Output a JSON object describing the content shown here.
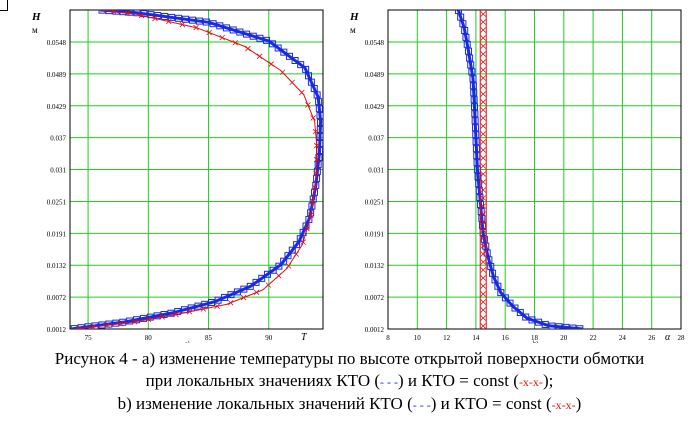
{
  "caption": {
    "line1": "Рисунок 4 - а) изменение температуры по высоте открытой поверхности обмотки",
    "line2a": "при локальных значениях КТО (",
    "line2b": "- - -",
    "line2c": ") и КТО = const (",
    "line2d": "-x-x-",
    "line2e": ");",
    "line3a": "b) изменение локальных значений КТО (",
    "line3b": "-  - -",
    "line3c": ") и КТО = const (",
    "line3d": "-x-x-",
    "line3e": ")"
  },
  "colors": {
    "grid": "#22cc22",
    "blue": "#1a2ae0",
    "red": "#e01010",
    "axis": "#000000"
  },
  "chart_data": [
    {
      "type": "line",
      "panel_label": "a)",
      "ylabel": "H",
      "ylabel_unit": "м",
      "xlabel": "T",
      "xlim": [
        73.5,
        94.5
      ],
      "ylim": [
        0.0012,
        0.0608
      ],
      "x_ticks": [
        75,
        80,
        85,
        90
      ],
      "y_ticks": [
        "0.0012",
        "0.0072",
        "0.0132",
        "0.0191",
        "0.0251",
        "0.031",
        "0.037",
        "0.0429",
        "0.0489",
        "0.0548"
      ],
      "grid": true,
      "series": [
        {
          "style": "blue-thick-squares",
          "points": [
            [
              73.6,
              0.0012
            ],
            [
              78.0,
              0.0025
            ],
            [
              82.0,
              0.0042
            ],
            [
              85.5,
              0.0063
            ],
            [
              88.5,
              0.0092
            ],
            [
              91.0,
              0.0132
            ],
            [
              92.5,
              0.0175
            ],
            [
              93.4,
              0.022
            ],
            [
              93.9,
              0.028
            ],
            [
              94.2,
              0.034
            ],
            [
              94.3,
              0.04
            ],
            [
              94.1,
              0.0445
            ],
            [
              93.0,
              0.05
            ],
            [
              90.0,
              0.055
            ],
            [
              85.0,
              0.0585
            ],
            [
              79.0,
              0.0603
            ],
            [
              76.0,
              0.0608
            ]
          ]
        },
        {
          "style": "red-thin-crosses",
          "points": [
            [
              74.0,
              0.0012
            ],
            [
              78.5,
              0.0024
            ],
            [
              82.5,
              0.004
            ],
            [
              86.5,
              0.0058
            ],
            [
              89.5,
              0.0085
            ],
            [
              91.5,
              0.0125
            ],
            [
              92.8,
              0.017
            ],
            [
              93.5,
              0.0225
            ],
            [
              93.9,
              0.029
            ],
            [
              94.0,
              0.035
            ],
            [
              93.8,
              0.04
            ],
            [
              92.9,
              0.045
            ],
            [
              91.0,
              0.0495
            ],
            [
              88.0,
              0.054
            ],
            [
              84.0,
              0.0575
            ],
            [
              79.0,
              0.06
            ],
            [
              76.0,
              0.0608
            ]
          ]
        }
      ]
    },
    {
      "type": "line",
      "panel_label": "b)",
      "ylabel": "H",
      "ylabel_unit": "м",
      "xlabel": "α",
      "xlim": [
        8,
        28
      ],
      "ylim": [
        0.0012,
        0.0608
      ],
      "x_ticks": [
        8,
        10,
        12,
        14,
        16,
        18,
        20,
        22,
        24,
        26,
        28
      ],
      "y_ticks": [
        "0.0012",
        "0.0072",
        "0.0132",
        "0.0191",
        "0.0251",
        "0.031",
        "0.037",
        "0.0429",
        "0.0489",
        "0.0548"
      ],
      "grid": true,
      "series": [
        {
          "style": "blue-thick-squares",
          "points": [
            [
              21.3,
              0.0012
            ],
            [
              19.0,
              0.0018
            ],
            [
              17.5,
              0.0032
            ],
            [
              16.5,
              0.0055
            ],
            [
              15.7,
              0.008
            ],
            [
              15.2,
              0.011
            ],
            [
              14.8,
              0.015
            ],
            [
              14.5,
              0.019
            ],
            [
              14.3,
              0.025
            ],
            [
              14.1,
              0.031
            ],
            [
              14.0,
              0.037
            ],
            [
              13.9,
              0.043
            ],
            [
              13.8,
              0.048
            ],
            [
              13.5,
              0.053
            ],
            [
              13.2,
              0.0575
            ],
            [
              12.8,
              0.0608
            ]
          ]
        },
        {
          "style": "red-thin-crosses-constant",
          "points": [
            [
              14.5,
              0.0012
            ],
            [
              14.5,
              0.0608
            ]
          ]
        }
      ]
    }
  ]
}
